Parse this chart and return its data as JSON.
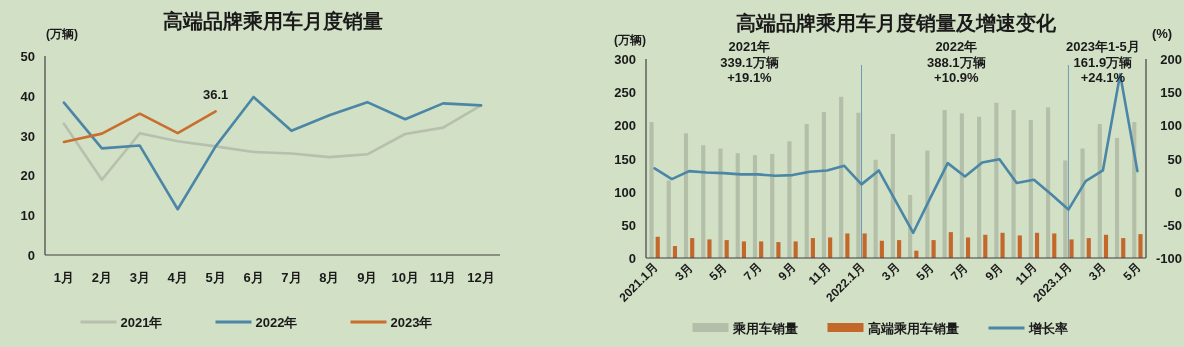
{
  "chart_data": [
    {
      "type": "line",
      "title": "高端品牌乘用车月度销量",
      "ylabel": "(万辆)",
      "categories": [
        "1月",
        "2月",
        "3月",
        "4月",
        "5月",
        "6月",
        "7月",
        "8月",
        "9月",
        "10月",
        "11月",
        "12月"
      ],
      "ylim": [
        0,
        50
      ],
      "yticks": [
        0,
        10,
        20,
        30,
        40,
        50
      ],
      "legend": "bottom",
      "series": [
        {
          "name": "2021年",
          "color": "#b6c0ad",
          "values": [
            33.0,
            18.9,
            30.6,
            28.6,
            27.3,
            25.9,
            25.5,
            24.6,
            25.3,
            30.4,
            32.0,
            37.6
          ]
        },
        {
          "name": "2022年",
          "color": "#4b86a6",
          "values": [
            38.3,
            26.8,
            27.5,
            11.5,
            27.3,
            39.7,
            31.2,
            35.1,
            38.4,
            34.1,
            38.1,
            37.6
          ]
        },
        {
          "name": "2023年",
          "color": "#c86f2e",
          "values": [
            28.4,
            30.5,
            35.5,
            30.6,
            36.1,
            null,
            null,
            null,
            null,
            null,
            null,
            null
          ],
          "value_labels": [
            null,
            null,
            null,
            null,
            "36.1",
            null,
            null,
            null,
            null,
            null,
            null,
            null
          ]
        }
      ]
    },
    {
      "type": "bar",
      "title": "高端品牌乘用车月度销量及增速变化",
      "ylabel": "(万辆)",
      "y2label": "(%)",
      "categories": [
        "2021.1月",
        null,
        "3月",
        null,
        "5月",
        null,
        "7月",
        null,
        "9月",
        null,
        "11月",
        null,
        "2022.1月",
        null,
        "3月",
        null,
        "5月",
        null,
        "7月",
        null,
        "9月",
        null,
        "11月",
        null,
        "2023.1月",
        null,
        "3月",
        null,
        "5月"
      ],
      "ylim": [
        0,
        300
      ],
      "yticks": [
        0,
        50,
        100,
        150,
        200,
        250,
        300
      ],
      "y2lim": [
        -100,
        200
      ],
      "y2ticks": [
        -100,
        -50,
        0,
        50,
        100,
        150,
        200
      ],
      "legend": "bottom",
      "annotations": [
        "2021年\n339.1万辆\n+19.1%",
        "2022年\n388.1万辆\n+10.9%",
        "2023年1-5月\n161.9万辆\n+24.1%"
      ],
      "ref_lines": [
        {
          "axis": "x",
          "value": "2022.1月",
          "color": "#6a9bb8"
        },
        {
          "axis": "x",
          "value": "2023.1月",
          "color": "#6a9bb8"
        }
      ],
      "series": [
        {
          "name": "乘用车销量",
          "color": "#b3bfa8",
          "values": [
            205,
            117,
            188,
            170,
            165,
            158,
            155,
            157,
            176,
            202,
            220,
            243,
            219,
            148,
            187,
            95,
            162,
            223,
            218,
            213,
            234,
            223,
            208,
            227,
            147,
            165,
            202,
            181,
            205
          ]
        },
        {
          "name": "高端乘用车销量",
          "color": "#c4672a",
          "values": [
            32,
            18,
            30,
            28,
            27,
            25,
            25,
            24,
            25,
            30,
            31,
            37,
            37,
            26,
            27,
            11,
            27,
            39,
            31,
            35,
            38,
            34,
            38,
            37,
            28,
            30,
            35,
            30,
            36
          ]
        },
        {
          "name": "增长率",
          "type": "line",
          "axis": "y2",
          "color": "#4b86a6",
          "values": [
            35,
            19,
            31,
            29,
            28,
            26,
            26,
            24,
            25,
            30,
            32,
            39,
            11,
            32,
            -15,
            -62,
            -9,
            43,
            23,
            44,
            49,
            13,
            18,
            -4,
            -27,
            16,
            32,
            177,
            31
          ]
        }
      ]
    }
  ]
}
